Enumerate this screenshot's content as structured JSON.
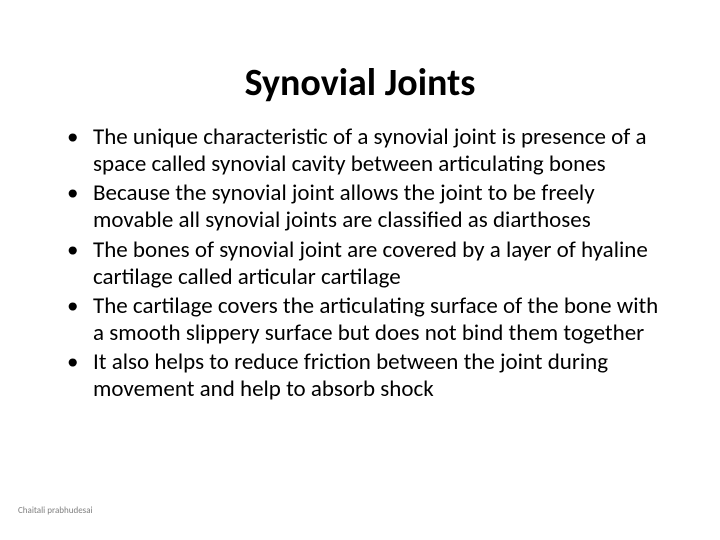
{
  "slide": {
    "title": "Synovial Joints",
    "title_fontsize": 38,
    "title_weight": 700,
    "title_color": "#000000",
    "body_fontsize": 23,
    "body_color": "#000000",
    "body_lineheight": 1.18,
    "background_color": "#ffffff",
    "bullet_char": "•",
    "bullets": [
      "The unique characteristic of a synovial joint is presence of a space called synovial cavity between articulating bones",
      "Because the synovial joint allows the joint to be freely movable all synovial joints are classified as diarthoses",
      "The bones of synovial joint are covered by a layer of hyaline cartilage called articular cartilage",
      "The cartilage covers the articulating surface of the bone with a smooth slippery surface but does not bind them together",
      "It also helps to reduce friction between the joint during movement and help to absorb shock"
    ],
    "footer": "Chaitali prabhudesai",
    "footer_fontsize": 9,
    "footer_color": "#7f7f7f"
  }
}
